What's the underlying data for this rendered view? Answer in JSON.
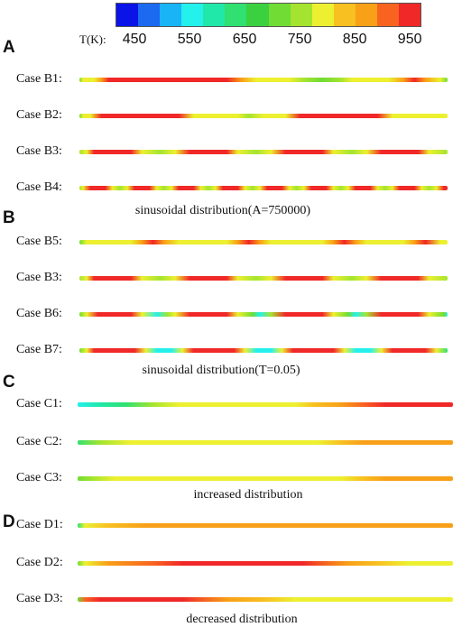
{
  "colorbar": {
    "title": "T(K):",
    "colors": [
      "#0a14e6",
      "#1c6af0",
      "#18b4f5",
      "#24f0ec",
      "#20e8a8",
      "#30e070",
      "#3ad040",
      "#70dc34",
      "#a4e430",
      "#ecf030",
      "#f8c020",
      "#f8a018",
      "#f86420",
      "#f02828"
    ],
    "ticks": [
      {
        "label": "450",
        "frac": 0.13
      },
      {
        "label": "550",
        "frac": 0.31
      },
      {
        "label": "650",
        "frac": 0.49
      },
      {
        "label": "750",
        "frac": 0.67
      },
      {
        "label": "850",
        "frac": 0.85
      },
      {
        "label": "950",
        "frac": 1.03
      }
    ]
  },
  "panels": [
    {
      "label": "A"
    },
    {
      "label": "B"
    },
    {
      "label": "C"
    },
    {
      "label": "D"
    }
  ],
  "captions": [
    {
      "text": "sinusoidal distribution(A=750000)"
    },
    {
      "text": "sinusoidal distribution(T=0.05)"
    },
    {
      "text": "increased distribution"
    },
    {
      "text": "decreased distribution"
    }
  ],
  "cases": [
    {
      "label": "Case B1:",
      "gradient": "linear-gradient(to right,#70dc34 0%,#ecf030 1%,#ecf030 4%,#f8a018 6%,#f02828 8%,#f02828 40%,#f8a018 44%,#ecf030 48%,#ecf030 57%,#a4e430 61%,#70dc34 66%,#a4e430 71%,#ecf030 74%,#ecf030 84%,#f8a018 88%,#f02828 91%,#f8a018 94%,#ecf030 98%,#70dc34 100%)"
    },
    {
      "label": "Case B2:",
      "gradient": "linear-gradient(to right,#70dc34 0%,#ecf030 1%,#ecf030 3%,#f02828 6%,#f02828 27%,#ecf030 31%,#ecf030 43%,#a4e430 46%,#ecf030 50%,#ecf030 56%,#f02828 60%,#f02828 81%,#ecf030 85%,#ecf030 100%)"
    },
    {
      "label": "Case B3:",
      "gradient": "linear-gradient(to right,#a4e430 0%,#ecf030 2%,#f02828 4%,#f02828 14%,#ecf030 17%,#a4e430 22%,#ecf030 26%,#f02828 30%,#f02828 40%,#ecf030 43%,#a4e430 48%,#ecf030 52%,#f02828 56%,#f02828 66%,#ecf030 69%,#a4e430 74%,#ecf030 78%,#f02828 82%,#f02828 92%,#ecf030 95%,#a4e430 100%)"
    },
    {
      "label": "Case B4:",
      "gradient": "linear-gradient(to right,#a4e430 0%,#ecf030 1%,#f02828 3%,#f02828 7%,#ecf030 9%,#a4e430 11%,#ecf030 13%,#f02828 15%,#f02828 19%,#ecf030 21%,#a4e430 23%,#ecf030 25%,#f02828 27%,#f02828 31%,#ecf030 33%,#a4e430 35%,#ecf030 37%,#f02828 39%,#f02828 43%,#ecf030 45%,#a4e430 47%,#ecf030 49%,#f02828 51%,#f02828 55%,#ecf030 57%,#a4e430 59%,#ecf030 61%,#f02828 63%,#f02828 67%,#ecf030 69%,#a4e430 71%,#ecf030 73%,#f02828 75%,#f02828 79%,#ecf030 81%,#a4e430 83%,#ecf030 85%,#f02828 87%,#f02828 91%,#ecf030 93%,#a4e430 95%,#ecf030 97%,#f02828 99%)"
    },
    {
      "label": "Case B5:",
      "gradient": "linear-gradient(to right,#70dc34 0%,#ecf030 2%,#ecf030 14%,#f8a018 17%,#f02828 20%,#f8a018 23%,#ecf030 27%,#ecf030 40%,#f8a018 43%,#f02828 46%,#f8a018 49%,#ecf030 52%,#ecf030 66%,#f8a018 69%,#f02828 72%,#f8a018 75%,#ecf030 78%,#ecf030 88%,#f8a018 91%,#f02828 94%,#ecf030 98%,#ecf030 100%)"
    },
    {
      "label": "Case B3:",
      "gradient": "linear-gradient(to right,#a4e430 0%,#ecf030 2%,#f02828 4%,#f02828 14%,#ecf030 17%,#a4e430 22%,#ecf030 26%,#f02828 30%,#f02828 40%,#ecf030 43%,#a4e430 48%,#ecf030 52%,#f02828 56%,#f02828 66%,#ecf030 69%,#a4e430 74%,#ecf030 78%,#f02828 82%,#f02828 92%,#ecf030 95%,#a4e430 100%)"
    },
    {
      "label": "Case B6:",
      "gradient": "linear-gradient(to right,#70dc34 0%,#ecf030 2%,#f02828 5%,#f02828 14%,#ecf030 17%,#24f0ec 21%,#a4e430 24%,#ecf030 26%,#f02828 30%,#f02828 40%,#ecf030 43%,#70dc34 47%,#24f0ec 49%,#a4e430 52%,#f02828 56%,#f02828 66%,#ecf030 69%,#70dc34 73%,#24f0ec 75%,#a4e430 78%,#f02828 82%,#f02828 92%,#ecf030 95%,#70dc34 99%,#24f0ec 100%)"
    },
    {
      "label": "Case B7:",
      "gradient": "linear-gradient(to right,#70dc34 0%,#ecf030 2%,#f02828 4%,#f02828 15%,#ecf030 18%,#24f0ec 21%,#24f0ec 25%,#ecf030 28%,#f02828 31%,#f02828 42%,#ecf030 45%,#24f0ec 48%,#24f0ec 52%,#ecf030 55%,#f02828 58%,#f02828 69%,#ecf030 72%,#24f0ec 75%,#24f0ec 79%,#ecf030 82%,#f02828 85%,#f02828 94%,#ecf030 97%,#30e070 100%)"
    },
    {
      "label": "Case C1:",
      "gradient": "linear-gradient(to right,#24f0ec 0%,#20e8a8 6%,#30e070 13%,#a4e430 20%,#ecf030 27%,#ecf030 58%,#f8c020 63%,#f8a018 70%,#f86420 76%,#f02828 82%,#f02828 100%)"
    },
    {
      "label": "Case C2:",
      "gradient": "linear-gradient(to right,#30e070 0%,#a4e430 6%,#ecf030 14%,#ecf030 64%,#f8c020 70%,#f8a018 76%,#f8a018 100%)"
    },
    {
      "label": "Case C3:",
      "gradient": "linear-gradient(to right,#70dc34 0%,#a4e430 4%,#ecf030 10%,#ecf030 70%,#f8c020 76%,#f8a018 82%,#f8a018 100%)"
    },
    {
      "label": "Case D1:",
      "gradient": "linear-gradient(to right,#30e070 0%,#ecf030 2%,#f8c020 8%,#f8a018 18%,#f8a018 100%)"
    },
    {
      "label": "Case D2:",
      "gradient": "linear-gradient(to right,#70dc34 0%,#ecf030 2%,#f8a018 8%,#f86420 20%,#f02828 28%,#f02828 60%,#f8a018 72%,#f8c020 80%,#ecf030 88%,#ecf030 100%)"
    },
    {
      "label": "Case D3:",
      "gradient": "linear-gradient(to right,#70dc34 0%,#f86420 2%,#f02828 6%,#f02828 28%,#f8a018 40%,#f8c020 50%,#ecf030 58%,#ecf030 100%)"
    }
  ]
}
